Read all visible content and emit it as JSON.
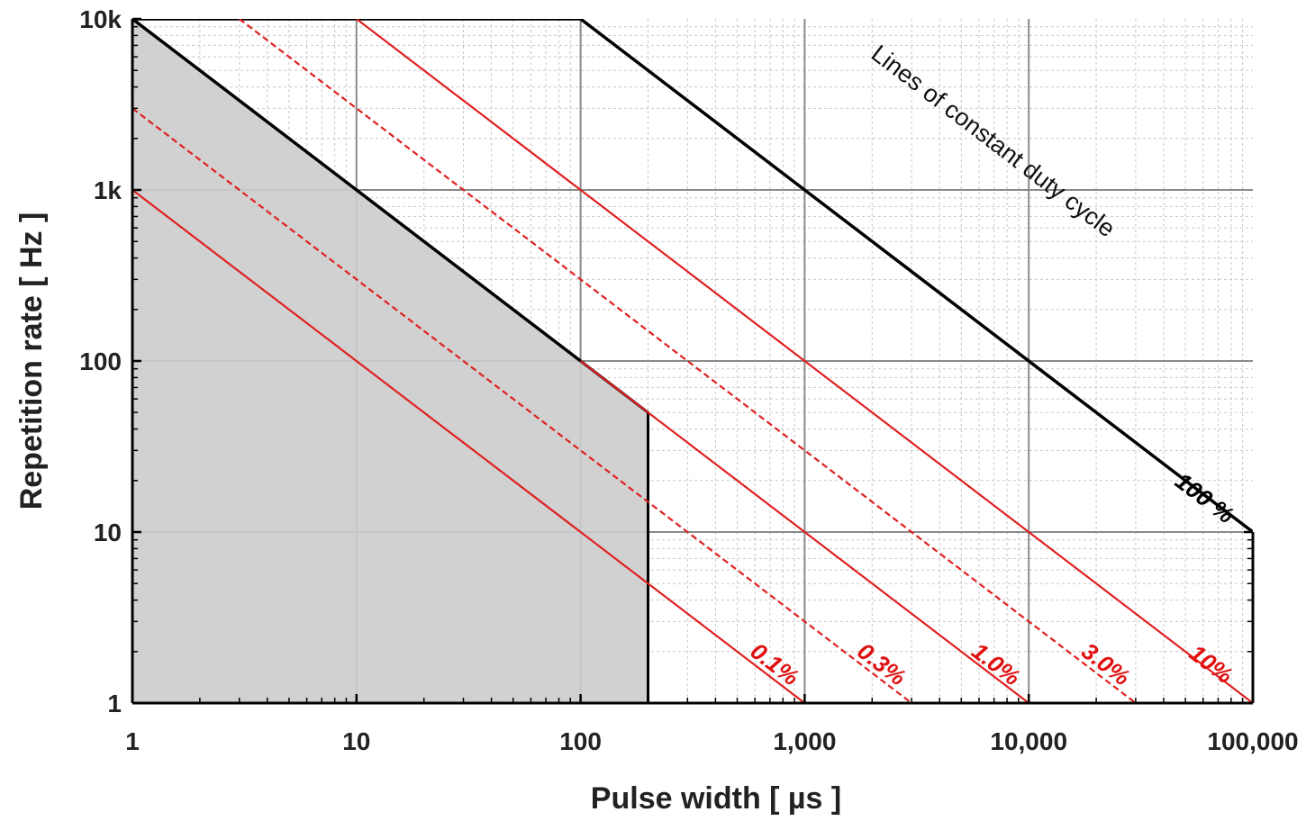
{
  "chart_data": {
    "type": "line",
    "xlabel": "Pulse width [ µs ]",
    "ylabel": "Repetition rate [ Hz ]",
    "xscale": "log",
    "yscale": "log",
    "xlim": [
      1,
      100000
    ],
    "ylim": [
      1,
      10000
    ],
    "grid": true,
    "x_ticks": [
      {
        "value": 1,
        "label": "1"
      },
      {
        "value": 10,
        "label": "10"
      },
      {
        "value": 100,
        "label": "100"
      },
      {
        "value": 1000,
        "label": "1,000"
      },
      {
        "value": 10000,
        "label": "10,000"
      },
      {
        "value": 100000,
        "label": "100,000"
      }
    ],
    "y_ticks": [
      {
        "value": 1,
        "label": "1"
      },
      {
        "value": 10,
        "label": "10"
      },
      {
        "value": 100,
        "label": "100"
      },
      {
        "value": 1000,
        "label": "1k"
      },
      {
        "value": 10000,
        "label": "10k"
      }
    ],
    "operating_region": {
      "description_points": [
        [
          1,
          1
        ],
        [
          1,
          10000
        ],
        [
          100,
          100
        ],
        [
          200,
          50
        ],
        [
          200,
          1
        ]
      ],
      "fill": "#cccccc"
    },
    "series": [
      {
        "label": "100 %",
        "duty_cycle": 1.0,
        "style": "solid",
        "color": "#000000",
        "x": [
          1,
          100,
          100000
        ],
        "y": [
          10000,
          10000,
          10
        ]
      },
      {
        "label": "10%",
        "duty_cycle": 0.1,
        "style": "solid",
        "color": "#e02020",
        "x": [
          10,
          100000
        ],
        "y": [
          10000,
          1
        ]
      },
      {
        "label": "3.0%",
        "duty_cycle": 0.03,
        "style": "dashed",
        "color": "#e02020",
        "x": [
          3,
          30000
        ],
        "y": [
          10000,
          1
        ]
      },
      {
        "label": "1.0%",
        "duty_cycle": 0.01,
        "style": "solid",
        "color": "#e02020",
        "x": [
          1,
          10000
        ],
        "y": [
          10000,
          1
        ]
      },
      {
        "label": "0.3%",
        "duty_cycle": 0.003,
        "style": "dashed",
        "color": "#e02020",
        "x": [
          1,
          3000
        ],
        "y": [
          3000,
          1
        ]
      },
      {
        "label": "0.1%",
        "duty_cycle": 0.001,
        "style": "solid",
        "color": "#e02020",
        "x": [
          1,
          1000
        ],
        "y": [
          1000,
          1
        ]
      }
    ],
    "annotations": [
      {
        "text": "Lines of constant duty cycle",
        "x": 5000,
        "y": 2000
      }
    ]
  }
}
